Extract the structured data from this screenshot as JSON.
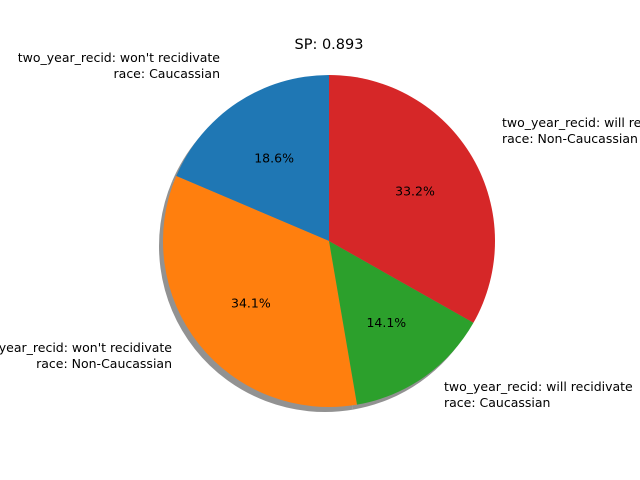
{
  "chart_data": {
    "type": "pie",
    "title": "SP: 0.893",
    "slices": [
      {
        "label_line1": "two_year_recid: won't recidivate",
        "label_line2": "race: Caucassian",
        "value": 18.6,
        "pct_label": "18.6%",
        "color": "#1f77b4"
      },
      {
        "label_line1": "two_year_recid: won't recidivate",
        "label_line2": "race: Non-Caucassian",
        "value": 34.1,
        "pct_label": "34.1%",
        "color": "#ff7f0e"
      },
      {
        "label_line1": "two_year_recid: will recidivate",
        "label_line2": "race: Caucassian",
        "value": 14.1,
        "pct_label": "14.1%",
        "color": "#2ca02c"
      },
      {
        "label_line1": "two_year_recid: will recidivate",
        "label_line2": "race: Non-Caucassian",
        "value": 33.2,
        "pct_label": "33.2%",
        "color": "#d62728"
      }
    ],
    "start_angle_deg": 90,
    "direction": "counterclockwise",
    "shadow": true
  }
}
